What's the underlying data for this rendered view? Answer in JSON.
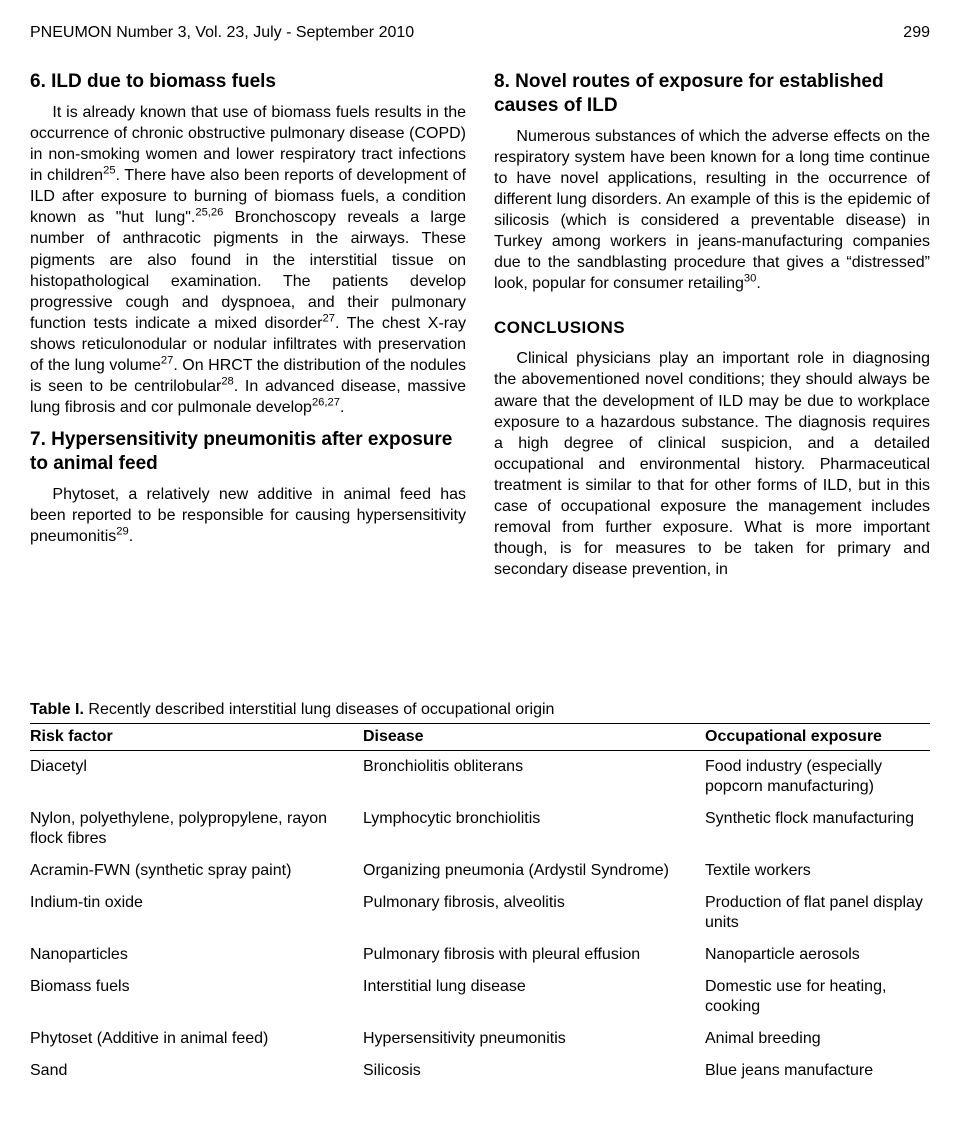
{
  "header": {
    "journal": "PNEUMON Number 3, Vol. 23, July - September 2010",
    "page_number": "299"
  },
  "left_column": {
    "section6": {
      "title": "6. ILD due to biomass fuels",
      "body_html": "It is already known that use of biomass fuels results in the occurrence of chronic obstructive pulmonary disease (COPD) in non-smoking women and lower respiratory tract infections in children<sup>25</sup>. There have also been reports of development of ILD after exposure to burning of biomass fuels, a condition known as \"hut lung\".<sup>25,26</sup> Bronchoscopy reveals a large number of anthracotic pigments in the airways. These pigments are also found in the interstitial tissue on histopathological examination. The patients develop progressive cough and dyspnoea, and their pulmonary function tests indicate a mixed disorder<sup>27</sup>. The chest X-ray shows reticulonodular or nodular infiltrates with preservation of the lung volume<sup>27</sup>. On HRCT the distribution of the nodules is seen to be centrilobular<sup>28</sup>. In advanced disease, massive lung fibrosis and cor pulmonale develop<sup>26,27</sup>."
    },
    "section7": {
      "title": "7. Hypersensitivity pneumonitis after exposure to animal feed",
      "body_html": "Phytoset, a relatively new additive in animal feed has been reported to be responsible for causing hypersensitivity pneumonitis<sup>29</sup>."
    }
  },
  "right_column": {
    "section8": {
      "title": "8. Novel routes of exposure for established causes of ILD",
      "body_html": "Numerous substances of which the adverse effects on the respiratory system have been known for a long time continue to have novel applications, resulting in the occurrence of different lung disorders. An example of this is the epidemic of silicosis (which is considered a preventable disease) in Turkey among workers in jeans-manufacturing companies due to the sandblasting procedure that gives a “distressed” look, popular for consumer retailing<sup>30</sup>."
    },
    "conclusions": {
      "heading": "CONCLUSIONS",
      "body_html": "Clinical physicians play an important role in diagnosing the abovementioned novel conditions; they should always be aware that the development of ILD may be due to workplace exposure to a hazardous substance. The diagnosis requires a high degree of clinical suspicion, and a detailed occupational and environmental history. Pharmaceutical treatment is similar to that for other forms of ILD, but in this case of occupational exposure the management includes removal from further exposure. What is more important though, is for measures to be taken for primary and secondary disease prevention, in"
    }
  },
  "table": {
    "caption_label": "Table I.",
    "caption_text": " Recently described interstitial lung diseases of occupational origin",
    "columns": [
      "Risk factor",
      "Disease",
      "Occupational exposure"
    ],
    "rows": [
      [
        "Diacetyl",
        "Bronchiolitis obliterans",
        "Food industry (especially popcorn manufacturing)"
      ],
      [
        "Nylon, polyethylene, polypropylene, rayon flock fibres",
        "Lymphocytic bronchiolitis",
        "Synthetic flock manufacturing"
      ],
      [
        "Acramin-FWN (synthetic spray paint)",
        "Organizing pneumonia (Ardystil Syndrome)",
        "Textile workers"
      ],
      [
        "Indium-tin oxide",
        "Pulmonary fibrosis, alveolitis",
        "Production of flat panel display units"
      ],
      [
        "Nanoparticles",
        "Pulmonary fibrosis with pleural effusion",
        "Nanoparticle aerosols"
      ],
      [
        "Biomass fuels",
        "Interstitial lung disease",
        "Domestic use for heating, cooking"
      ],
      [
        "Phytoset (Additive in animal feed)",
        "Hypersensitivity pneumonitis",
        "Animal breeding"
      ],
      [
        "Sand",
        "Silicosis",
        "Blue jeans manufacture"
      ]
    ]
  }
}
